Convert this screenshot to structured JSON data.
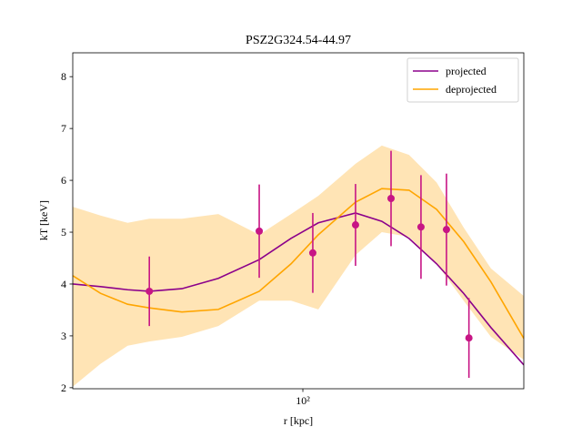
{
  "chart_data": {
    "type": "line",
    "title": "PSZ2G324.54-44.97",
    "xlabel": "r [kpc]",
    "ylabel": "kT [keV]",
    "xscale": "log",
    "xlim": [
      12.0,
      766
    ],
    "ylim": [
      1.98,
      8.46
    ],
    "xticks": [
      {
        "value": 100,
        "label": "10²"
      }
    ],
    "yticks": [
      2,
      3,
      4,
      5,
      6,
      7,
      8
    ],
    "legend": "upper right",
    "series": [
      {
        "name": "projected",
        "color": "#8b008b",
        "x": [
          12.0,
          15.5,
          19.9,
          24.3,
          32.8,
          45.9,
          66.9,
          89.7,
          115.3,
          162.5,
          207,
          266,
          343,
          440,
          566,
          766
        ],
        "values": [
          4.0,
          3.95,
          3.89,
          3.86,
          3.91,
          4.11,
          4.47,
          4.88,
          5.18,
          5.37,
          5.21,
          4.88,
          4.39,
          3.82,
          3.16,
          2.44
        ]
      },
      {
        "name": "deprojected",
        "color": "#ffa500",
        "x": [
          12.0,
          15.5,
          19.9,
          24.3,
          32.8,
          45.9,
          66.9,
          89.7,
          115.3,
          162.5,
          207,
          266,
          343,
          440,
          566,
          766
        ],
        "values": [
          4.16,
          3.82,
          3.61,
          3.54,
          3.46,
          3.51,
          3.86,
          4.39,
          4.95,
          5.58,
          5.84,
          5.81,
          5.44,
          4.82,
          4.04,
          2.95
        ]
      }
    ],
    "band": {
      "color": "#ffdfa8",
      "x": [
        12.0,
        15.5,
        19.9,
        24.3,
        32.8,
        45.9,
        66.9,
        89.7,
        115.3,
        162.5,
        207,
        266,
        343,
        440,
        566,
        766
      ],
      "lower": [
        2.02,
        2.46,
        2.81,
        2.89,
        2.98,
        3.19,
        3.68,
        3.68,
        3.51,
        4.56,
        5.0,
        4.91,
        4.39,
        3.68,
        2.98,
        2.54
      ],
      "upper": [
        5.49,
        5.32,
        5.18,
        5.26,
        5.26,
        5.35,
        4.95,
        5.35,
        5.7,
        6.32,
        6.67,
        6.49,
        5.96,
        5.09,
        4.3,
        3.77
      ]
    },
    "points": {
      "color": "#c71585",
      "x": [
        24.3,
        66.9,
        109.6,
        162.5,
        225.4,
        297,
        375.6,
        462
      ],
      "values": [
        3.86,
        5.02,
        4.6,
        5.14,
        5.65,
        5.1,
        5.05,
        2.96
      ],
      "errors": [
        0.67,
        0.9,
        0.77,
        0.79,
        0.92,
        1.0,
        1.08,
        0.77
      ]
    }
  }
}
